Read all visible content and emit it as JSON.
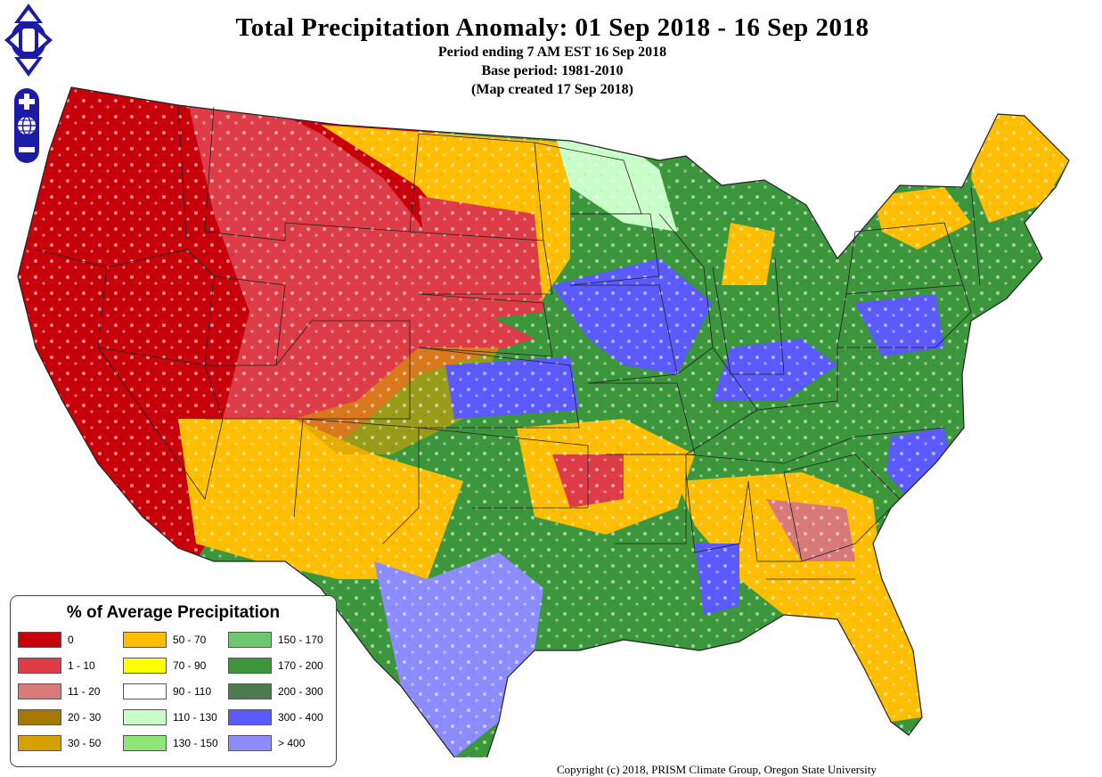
{
  "map": {
    "title": "Total Precipitation Anomaly: 01 Sep 2018 - 16 Sep 2018",
    "subtitle_lines": [
      "Period ending 7 AM EST 16 Sep 2018",
      "Base period: 1981-2010",
      "(Map created 17 Sep 2018)"
    ],
    "copyright": "Copyright (c) 2018, PRISM Climate Group, Oregon State University"
  },
  "controls": {
    "pan_icon": "pan-arrows-icon",
    "zoom_in_icon": "zoom-in-icon",
    "globe_icon": "globe-icon",
    "zoom_out_icon": "zoom-out-icon"
  },
  "legend": {
    "title": "% of Average Precipitation",
    "items": [
      {
        "label": "0",
        "color": "#c8000a"
      },
      {
        "label": "1 - 10",
        "color": "#de3c46"
      },
      {
        "label": "11 - 20",
        "color": "#d97a7a"
      },
      {
        "label": "20 - 30",
        "color": "#a67800"
      },
      {
        "label": "30 - 50",
        "color": "#d6a000"
      },
      {
        "label": "50 - 70",
        "color": "#ffbe00"
      },
      {
        "label": "70 - 90",
        "color": "#ffff00"
      },
      {
        "label": "90 - 110",
        "color": "#ffffff"
      },
      {
        "label": "110 - 130",
        "color": "#c8ffc8"
      },
      {
        "label": "130 - 150",
        "color": "#8ce678"
      },
      {
        "label": "150 - 170",
        "color": "#6ec86e"
      },
      {
        "label": "170 - 200",
        "color": "#3c963c"
      },
      {
        "label": "200 - 300",
        "color": "#4e7a50"
      },
      {
        "label": "300 - 400",
        "color": "#5a5aff"
      },
      {
        "label": "> 400",
        "color": "#8c8cff"
      }
    ]
  }
}
